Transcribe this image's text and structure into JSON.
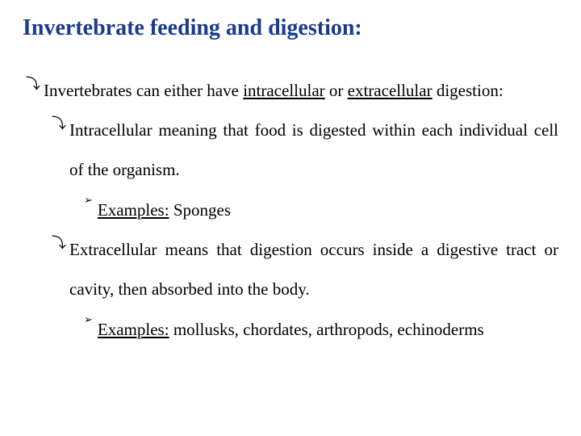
{
  "colors": {
    "title": "#1a3a8f",
    "body": "#000000",
    "marker": "#000000"
  },
  "fonts": {
    "title_size": "28px",
    "body_size": "21px",
    "marker_curl_size": "18px",
    "marker_tri_size": "13px"
  },
  "title": "Invertebrate feeding and digestion:",
  "l1": {
    "pre": "Invertebrates can either have ",
    "u1": "intracellular",
    "mid": " or ",
    "u2": "extracellular",
    "post": " digestion:"
  },
  "l2a": {
    "pre": "Intracellular meaning that food is digested within each individual cell of the organism."
  },
  "l3a": {
    "label": "Examples:",
    "rest": " Sponges"
  },
  "l2b": {
    "pre": "Extracellular means that digestion occurs inside a digestive tract or cavity, then absorbed into the body."
  },
  "l3b": {
    "label": "Examples:",
    "rest": " mollusks, chordates, arthropods, echinoderms"
  },
  "markers": {
    "curl": "⤵",
    "tri": "➢"
  }
}
